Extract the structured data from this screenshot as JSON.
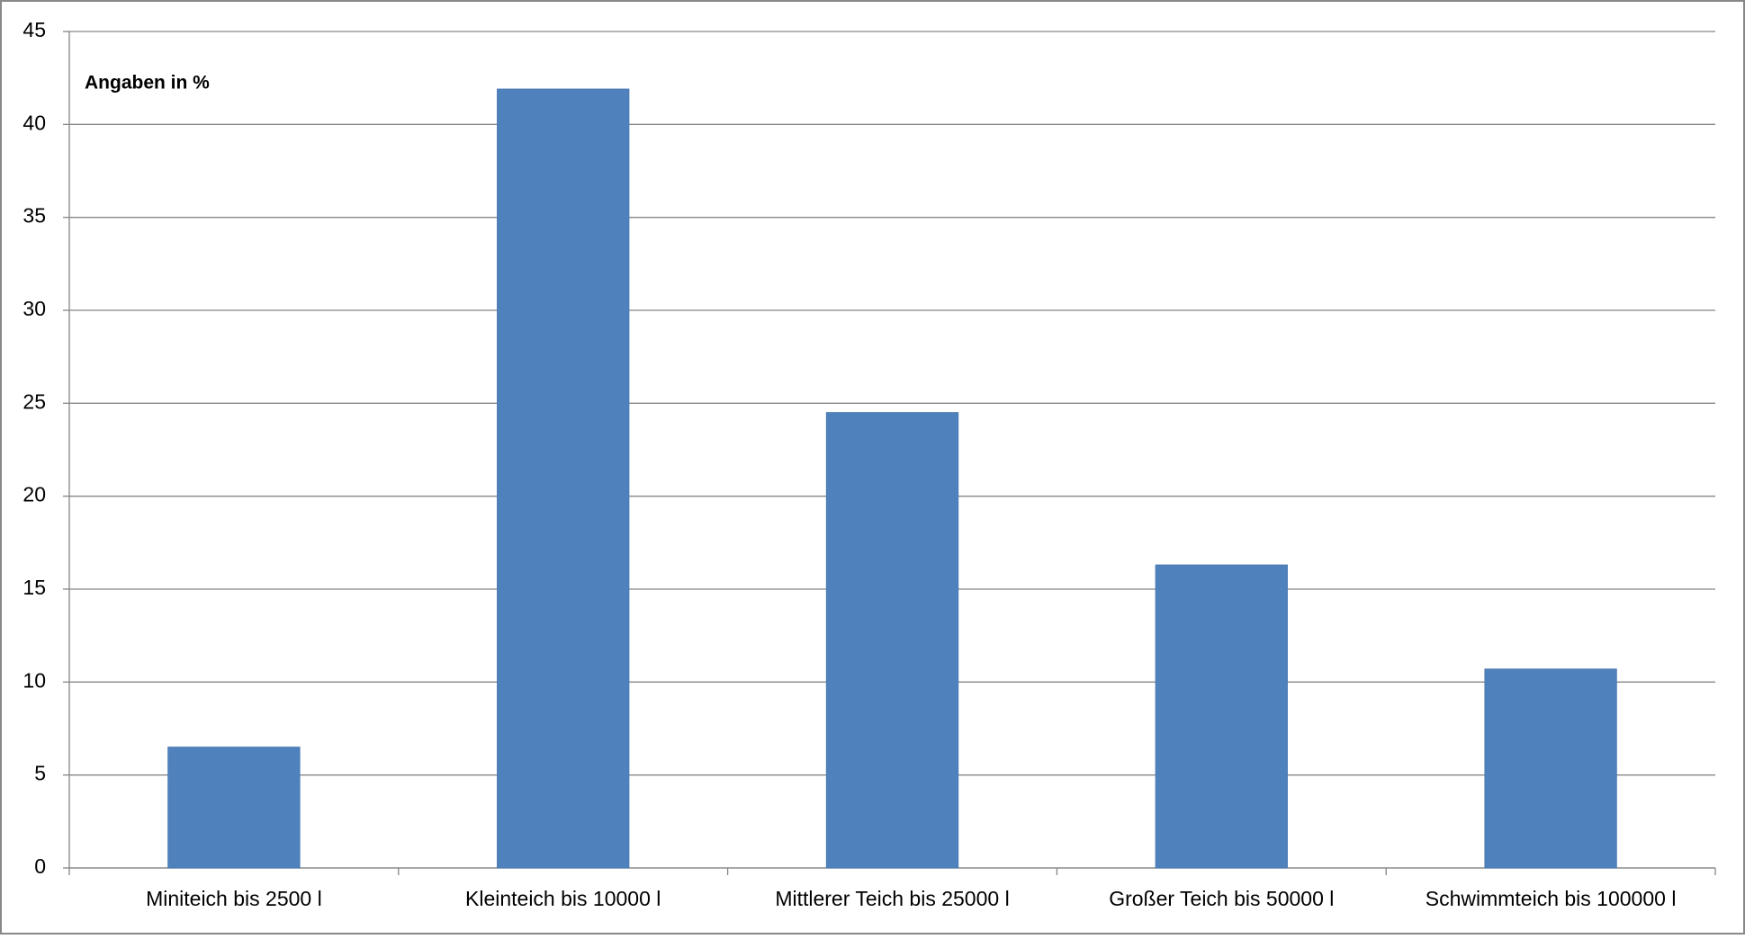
{
  "chart_data": {
    "type": "bar",
    "annotation": "Angaben in %",
    "categories": [
      "Miniteich bis 2500 l",
      "Kleinteich bis 10000 l",
      "Mittlerer Teich bis 25000 l",
      "Großer Teich bis 50000 l",
      "Schwimmteich bis 100000 l"
    ],
    "values": [
      6.5,
      41.9,
      24.5,
      16.3,
      10.7
    ],
    "color": "#4f81bd",
    "ylim": [
      0,
      45
    ],
    "yticks": [
      0,
      5,
      10,
      15,
      20,
      25,
      30,
      35,
      40,
      45
    ],
    "grid": true
  }
}
